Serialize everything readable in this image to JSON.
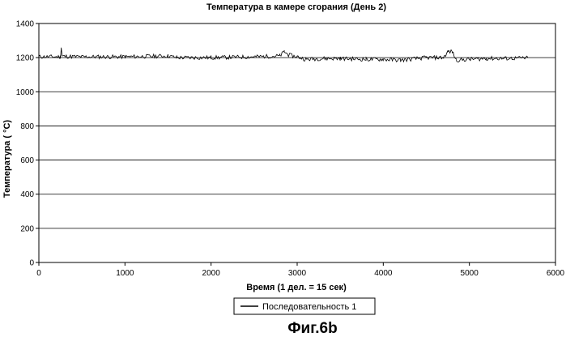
{
  "chart_data": {
    "type": "line",
    "title": "Температура в камере сгорания (День 2)",
    "xlabel": "Время (1 дел. = 15 сек)",
    "ylabel": "Температура ( °C)",
    "xlim": [
      0,
      6000
    ],
    "ylim": [
      0,
      1400
    ],
    "xticks": [
      0,
      1000,
      2000,
      3000,
      4000,
      5000,
      6000
    ],
    "yticks": [
      0,
      200,
      400,
      600,
      800,
      1000,
      1200,
      1400
    ],
    "grid": "horizontal",
    "legend_position": "bottom-center",
    "series": [
      {
        "name": "Последовательность 1",
        "color": "#000000",
        "x": [
          0,
          250,
          260,
          270,
          500,
          1000,
          1500,
          1600,
          2000,
          2500,
          2800,
          2850,
          2900,
          3000,
          3100,
          3300,
          3500,
          3800,
          4000,
          4200,
          4500,
          4700,
          4750,
          4800,
          4850,
          5000,
          5200,
          5400,
          5680
        ],
        "y": [
          1205,
          1205,
          1260,
          1208,
          1205,
          1205,
          1210,
          1200,
          1200,
          1205,
          1210,
          1235,
          1215,
          1205,
          1190,
          1195,
          1195,
          1190,
          1190,
          1185,
          1200,
          1200,
          1235,
          1235,
          1185,
          1190,
          1195,
          1195,
          1198
        ]
      }
    ]
  },
  "figure_caption": "Фиг.6b"
}
